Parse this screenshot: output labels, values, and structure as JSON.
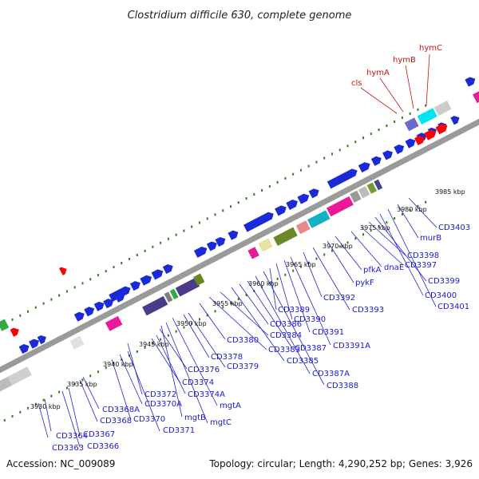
{
  "title": "Clostridium difficile 630, complete genome",
  "footer": {
    "accession": "Accession: NC_009089",
    "topology": "Topology: circular; Length: 4,290,252 bp; Genes: 3,926"
  },
  "kbp_labels": [
    "3930 kbp",
    "3935 kbp",
    "3940 kbp",
    "3945 kbp",
    "3950 kbp",
    "3955 kbp",
    "3960 kbp",
    "3965 kbp",
    "3970 kbp",
    "3975 kbp",
    "3980 kbp",
    "3985 kbp"
  ],
  "highlighted_genes": [
    "cls",
    "hymA",
    "hymB",
    "hymC"
  ],
  "gene_labels": [
    "CD3363",
    "CD3364",
    "CD3366",
    "CD3367",
    "CD3368",
    "CD3368A",
    "CD3370",
    "CD3370A",
    "CD3371",
    "CD3372",
    "CD3374",
    "CD3374A",
    "CD3376",
    "mgtB",
    "mgtC",
    "mgtA",
    "CD3378",
    "CD3379",
    "CD3380",
    "CD3383",
    "CD3384",
    "CD3385",
    "CD3386",
    "CD3387",
    "CD3387A",
    "CD3388",
    "CD3389",
    "CD3390",
    "CD3391",
    "CD3391A",
    "CD3392",
    "CD3393",
    "pykF",
    "pfkA",
    "dnaE",
    "CD3397",
    "CD3398",
    "CD3399",
    "CD3400",
    "CD3401",
    "murB",
    "CD3403"
  ],
  "colors": {
    "backbone": "#9a9a9a",
    "forward_gene": "#1a2ad6",
    "highlight_gene": "#ff0000",
    "tick_mark": "#2e7d1e",
    "label_blue": "#1a1acc",
    "label_red": "#cc1111"
  }
}
